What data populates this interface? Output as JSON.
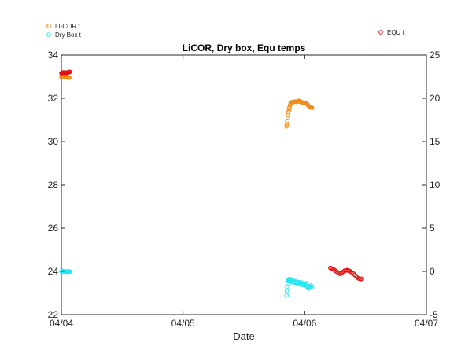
{
  "chart_data": {
    "type": "scatter",
    "title": "LiCOR, Dry box, Equ temps",
    "xlabel": "Date",
    "ylabel": "",
    "x_ticks": [
      "04/04",
      "04/05",
      "04/06",
      "04/07"
    ],
    "xlim": [
      "04/04",
      "04/07"
    ],
    "ylim_left": [
      22,
      34
    ],
    "yticks_left": [
      22,
      24,
      26,
      28,
      30,
      32,
      34
    ],
    "ylim_right": [
      -5,
      25
    ],
    "yticks_right": [
      -5,
      0,
      5,
      10,
      15,
      20,
      25
    ],
    "grid": false,
    "legend_left": [
      "LI-COR t",
      "Dry Box t"
    ],
    "legend_right": [
      "EQU t"
    ],
    "series": [
      {
        "name": "LI-COR t",
        "axis": "left",
        "color": "#f08c1a",
        "points": [
          [
            0.0,
            33.0
          ],
          [
            0.005,
            33.0
          ],
          [
            0.01,
            33.0
          ],
          [
            0.015,
            33.0
          ],
          [
            0.02,
            33.0
          ],
          [
            0.025,
            33.0
          ],
          [
            0.03,
            33.0
          ],
          [
            0.035,
            33.0
          ],
          [
            0.04,
            33.0
          ],
          [
            0.045,
            33.0
          ],
          [
            0.05,
            32.98
          ],
          [
            0.055,
            32.95
          ],
          [
            0.06,
            32.95
          ],
          [
            0.065,
            32.95
          ],
          [
            1.85,
            30.7
          ],
          [
            1.853,
            30.8
          ],
          [
            1.856,
            30.95
          ],
          [
            1.86,
            31.1
          ],
          [
            1.863,
            31.2
          ],
          [
            1.866,
            31.35
          ],
          [
            1.87,
            31.45
          ],
          [
            1.873,
            31.55
          ],
          [
            1.876,
            31.6
          ],
          [
            1.88,
            31.7
          ],
          [
            1.885,
            31.75
          ],
          [
            1.89,
            31.8
          ],
          [
            1.895,
            31.82
          ],
          [
            1.9,
            31.83
          ],
          [
            1.905,
            31.83
          ],
          [
            1.91,
            31.84
          ],
          [
            1.915,
            31.84
          ],
          [
            1.92,
            31.85
          ],
          [
            1.925,
            31.85
          ],
          [
            1.93,
            31.84
          ],
          [
            1.935,
            31.84
          ],
          [
            1.94,
            31.85
          ],
          [
            1.945,
            31.87
          ],
          [
            1.95,
            31.88
          ],
          [
            1.955,
            31.87
          ],
          [
            1.96,
            31.86
          ],
          [
            1.965,
            31.84
          ],
          [
            1.97,
            31.83
          ],
          [
            1.975,
            31.82
          ],
          [
            1.98,
            31.8
          ],
          [
            1.985,
            31.8
          ],
          [
            1.99,
            31.79
          ],
          [
            1.995,
            31.78
          ],
          [
            2.0,
            31.78
          ],
          [
            2.005,
            31.77
          ],
          [
            2.01,
            31.76
          ],
          [
            2.015,
            31.75
          ],
          [
            2.02,
            31.73
          ],
          [
            2.025,
            31.7
          ],
          [
            2.03,
            31.66
          ],
          [
            2.035,
            31.63
          ],
          [
            2.04,
            31.61
          ],
          [
            2.045,
            31.6
          ],
          [
            2.05,
            31.58
          ],
          [
            2.055,
            31.57
          ],
          [
            2.06,
            31.56
          ]
        ]
      },
      {
        "name": "Dry Box t",
        "axis": "left",
        "color": "#27e6f0",
        "points": [
          [
            0.0,
            24.0
          ],
          [
            0.005,
            24.0
          ],
          [
            0.01,
            24.02
          ],
          [
            0.015,
            24.0
          ],
          [
            0.02,
            24.0
          ],
          [
            0.025,
            24.01
          ],
          [
            0.03,
            24.0
          ],
          [
            0.035,
            23.99
          ],
          [
            0.04,
            24.0
          ],
          [
            0.045,
            23.98
          ],
          [
            0.05,
            24.0
          ],
          [
            0.055,
            24.0
          ],
          [
            0.06,
            23.99
          ],
          [
            0.065,
            24.0
          ],
          [
            0.07,
            23.99
          ],
          [
            1.85,
            22.88
          ],
          [
            1.853,
            23.1
          ],
          [
            1.856,
            23.3
          ],
          [
            1.86,
            23.45
          ],
          [
            1.863,
            23.55
          ],
          [
            1.866,
            23.6
          ],
          [
            1.87,
            23.58
          ],
          [
            1.873,
            23.62
          ],
          [
            1.876,
            23.65
          ],
          [
            1.88,
            23.6
          ],
          [
            1.885,
            23.55
          ],
          [
            1.89,
            23.5
          ],
          [
            1.895,
            23.55
          ],
          [
            1.9,
            23.6
          ],
          [
            1.905,
            23.57
          ],
          [
            1.91,
            23.52
          ],
          [
            1.915,
            23.5
          ],
          [
            1.92,
            23.48
          ],
          [
            1.925,
            23.5
          ],
          [
            1.93,
            23.55
          ],
          [
            1.935,
            23.5
          ],
          [
            1.94,
            23.45
          ],
          [
            1.945,
            23.47
          ],
          [
            1.95,
            23.5
          ],
          [
            1.955,
            23.47
          ],
          [
            1.96,
            23.4
          ],
          [
            1.965,
            23.45
          ],
          [
            1.97,
            23.5
          ],
          [
            1.975,
            23.43
          ],
          [
            1.98,
            23.38
          ],
          [
            1.985,
            23.42
          ],
          [
            1.99,
            23.45
          ],
          [
            1.995,
            23.4
          ],
          [
            2.0,
            23.35
          ],
          [
            2.005,
            23.38
          ],
          [
            2.01,
            23.45
          ],
          [
            2.015,
            23.4
          ],
          [
            2.02,
            23.3
          ],
          [
            2.025,
            23.25
          ],
          [
            2.03,
            23.2
          ],
          [
            2.035,
            23.25
          ],
          [
            2.04,
            23.3
          ],
          [
            2.045,
            23.28
          ],
          [
            2.05,
            23.35
          ],
          [
            2.055,
            23.3
          ],
          [
            2.06,
            23.25
          ]
        ]
      },
      {
        "name": "EQU t",
        "axis": "right",
        "color": "#e01010",
        "points": [
          [
            0.0,
            22.9
          ],
          [
            0.005,
            22.95
          ],
          [
            0.01,
            22.95
          ],
          [
            0.015,
            23.0
          ],
          [
            0.02,
            22.95
          ],
          [
            0.025,
            22.95
          ],
          [
            0.03,
            23.0
          ],
          [
            0.035,
            22.95
          ],
          [
            0.04,
            22.95
          ],
          [
            0.045,
            22.95
          ],
          [
            0.05,
            23.0
          ],
          [
            0.055,
            23.0
          ],
          [
            0.06,
            23.0
          ],
          [
            0.065,
            23.05
          ],
          [
            0.07,
            23.05
          ],
          [
            2.21,
            0.4
          ],
          [
            2.22,
            0.35
          ],
          [
            2.23,
            0.3
          ],
          [
            2.24,
            0.2
          ],
          [
            2.25,
            0.1
          ],
          [
            2.26,
            0.0
          ],
          [
            2.27,
            -0.1
          ],
          [
            2.28,
            -0.2
          ],
          [
            2.29,
            -0.3
          ],
          [
            2.3,
            -0.2
          ],
          [
            2.31,
            -0.1
          ],
          [
            2.32,
            0.0
          ],
          [
            2.33,
            0.1
          ],
          [
            2.34,
            0.1
          ],
          [
            2.35,
            0.15
          ],
          [
            2.36,
            0.1
          ],
          [
            2.37,
            0.05
          ],
          [
            2.38,
            -0.05
          ],
          [
            2.39,
            -0.15
          ],
          [
            2.4,
            -0.25
          ],
          [
            2.41,
            -0.4
          ],
          [
            2.42,
            -0.55
          ],
          [
            2.43,
            -0.7
          ],
          [
            2.44,
            -0.8
          ],
          [
            2.45,
            -0.85
          ],
          [
            2.46,
            -0.9
          ],
          [
            2.47,
            -0.85
          ]
        ]
      }
    ]
  }
}
